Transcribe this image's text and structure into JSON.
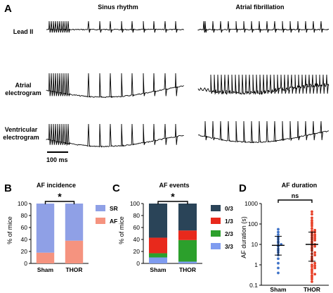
{
  "panel_A": {
    "letter": "A",
    "col_titles": [
      "Sinus rhythm",
      "Atrial fibrillation"
    ],
    "row_labels": [
      [
        "Lead II"
      ],
      [
        "Atrial",
        "electrogram"
      ],
      [
        "Ventricular",
        "electrogram"
      ]
    ],
    "scale_bar": "100 ms"
  },
  "chart_data": [
    {
      "letter": "B",
      "type": "bar",
      "stacked": true,
      "title": "AF incidence",
      "ylabel": "% of mice",
      "categories": [
        "Sham",
        "THOR"
      ],
      "ylim": [
        0,
        100
      ],
      "yticks": [
        "0",
        "20",
        "40",
        "60",
        "80",
        "100"
      ],
      "series": [
        {
          "name": "AF",
          "values": [
            18,
            38
          ],
          "color": "#f5937f"
        },
        {
          "name": "SR",
          "values": [
            82,
            62
          ],
          "color": "#8fa0e6"
        }
      ],
      "legend_order": [
        "SR",
        "AF"
      ],
      "significance": "*"
    },
    {
      "letter": "C",
      "type": "bar",
      "stacked": true,
      "title": "AF events",
      "ylabel": "% of mice",
      "categories": [
        "Sham",
        "THOR"
      ],
      "ylim": [
        0,
        100
      ],
      "yticks": [
        "0",
        "20",
        "40",
        "60",
        "80",
        "100"
      ],
      "series": [
        {
          "name": "3/3",
          "values": [
            10,
            3
          ],
          "color": "#7f9cf0"
        },
        {
          "name": "2/3",
          "values": [
            7,
            36
          ],
          "color": "#2ca02c"
        },
        {
          "name": "1/3",
          "values": [
            26,
            16
          ],
          "color": "#e8291c"
        },
        {
          "name": "0/3",
          "values": [
            57,
            45
          ],
          "color": "#2a4458"
        }
      ],
      "legend_order": [
        "0/3",
        "1/3",
        "2/3",
        "3/3"
      ],
      "significance": "*"
    },
    {
      "letter": "D",
      "type": "scatter",
      "title": "AF duration",
      "ylabel": "AF duration (s)",
      "yscale": "log",
      "ylim": [
        0.1,
        1000
      ],
      "yticks": [
        "0.1",
        "1",
        "10",
        "100",
        "1000"
      ],
      "categories": [
        "Sham",
        "THOR"
      ],
      "significance": "ns",
      "groups": [
        {
          "name": "Sham",
          "color": "#3f73c8",
          "values": [
            0.4,
            0.7,
            1.2,
            2,
            3,
            4,
            5,
            6,
            8,
            9,
            10,
            12,
            14,
            18,
            22,
            30,
            40,
            55
          ],
          "mean": 9,
          "sd_low": 3,
          "sd_high": 25
        },
        {
          "name": "THOR",
          "color": "#e8432b",
          "values": [
            0.15,
            0.2,
            0.25,
            0.3,
            0.35,
            0.4,
            0.5,
            0.6,
            0.7,
            0.8,
            0.9,
            1,
            1.2,
            1.5,
            1.8,
            2,
            2.5,
            3,
            3.5,
            4,
            5,
            6,
            7,
            8,
            9,
            10,
            12,
            14,
            16,
            18,
            20,
            22,
            25,
            28,
            30,
            35,
            40,
            45,
            50,
            60,
            80,
            100,
            120,
            150,
            200,
            300,
            400
          ],
          "mean": 10,
          "sd_low": 1.5,
          "sd_high": 40
        }
      ]
    }
  ]
}
